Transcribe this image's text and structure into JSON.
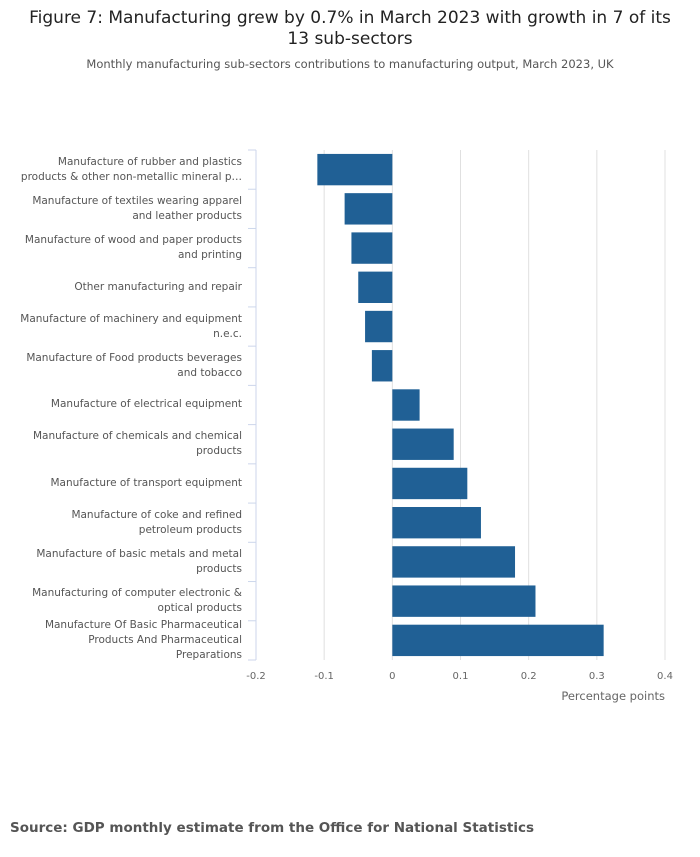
{
  "chart_data": {
    "type": "barh",
    "title": "Figure 7: Manufacturing grew by 0.7% in March 2023 with growth in 7 of its 13 sub-sectors",
    "subtitle": "Monthly manufacturing sub-sectors contributions to manufacturing output, March 2023, UK",
    "categories": [
      "Manufacture of rubber and plastics products & other non-metallic mineral p…",
      "Manufacture of textiles wearing apparel and leather products",
      "Manufacture of wood and paper products and printing",
      "Other manufacturing and repair",
      "Manufacture of machinery and equipment n.e.c.",
      "Manufacture of Food products beverages and tobacco",
      "Manufacture of electrical equipment",
      "Manufacture of chemicals and chemical products",
      "Manufacture of transport equipment",
      "Manufacture of coke and refined petroleum products",
      "Manufacture of basic metals and metal products",
      "Manufacturing of computer electronic & optical products",
      "Manufacture Of Basic Pharmaceutical Products And Pharmaceutical Preparations"
    ],
    "values": [
      -0.11,
      -0.07,
      -0.06,
      -0.05,
      -0.04,
      -0.03,
      0.04,
      0.09,
      0.11,
      0.13,
      0.18,
      0.21,
      0.31
    ],
    "color": "#206095",
    "xlim": [
      -0.2,
      0.4
    ],
    "xticks": [
      -0.2,
      -0.1,
      0,
      0.1,
      0.2,
      0.3,
      0.4
    ],
    "xlabel": "Percentage points",
    "grid": true,
    "source": "Source: GDP monthly estimate from the Office for National Statistics"
  }
}
